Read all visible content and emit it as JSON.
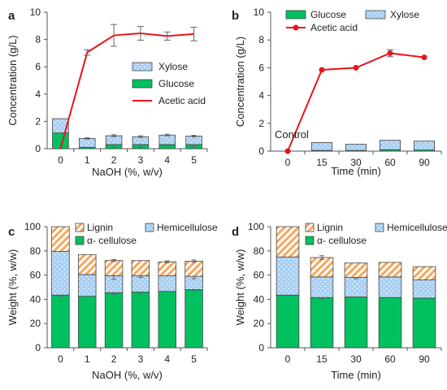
{
  "colors": {
    "glucose": "#00c060",
    "xylose": "#a9cff2",
    "acetic": "#e8141c",
    "lignin": "#f6a65c",
    "hemicellulose": "#a9cff2",
    "cellulose": "#00c060",
    "error_bar": "#666666"
  },
  "chart_data": [
    {
      "panel": "a",
      "type": "bar+line",
      "xlabel": "NaOH (%, w/v)",
      "ylabel": "Concentration (g/L)",
      "categories": [
        "0",
        "1",
        "2",
        "3",
        "4",
        "5"
      ],
      "ylim": [
        0,
        10
      ],
      "yticks": [
        0,
        2,
        4,
        6,
        8,
        10
      ],
      "series": [
        {
          "name": "Glucose",
          "kind": "stacked-bar",
          "values": [
            1.15,
            0.1,
            0.3,
            0.3,
            0.3,
            0.3
          ],
          "err": [
            0,
            0,
            0.2,
            0.2,
            0.1,
            0.15
          ]
        },
        {
          "name": "Xylose",
          "kind": "stacked-bar",
          "values": [
            1.05,
            0.65,
            0.65,
            0.58,
            0.7,
            0.62
          ],
          "err": [
            0,
            0.05,
            0.07,
            0.06,
            0.06,
            0.06
          ]
        },
        {
          "name": "Acetic acid",
          "kind": "line",
          "values": [
            0,
            7.05,
            8.3,
            8.45,
            8.25,
            8.4
          ],
          "err": [
            0,
            0.2,
            0.8,
            0.5,
            0.3,
            0.5
          ]
        }
      ],
      "legend": [
        "Xylose",
        "Glucose",
        "Acetic acid"
      ]
    },
    {
      "panel": "b",
      "type": "bar+line",
      "xlabel": "Time (min)",
      "ylabel": "Concentration (g/L)",
      "categories": [
        "0",
        "15",
        "30",
        "60",
        "90"
      ],
      "ylim": [
        0,
        10
      ],
      "yticks": [
        0,
        2,
        4,
        6,
        8,
        10
      ],
      "annotation": "Control",
      "series": [
        {
          "name": "Glucose",
          "kind": "stacked-bar",
          "values": [
            0,
            0.05,
            0.05,
            0.1,
            0.08
          ],
          "err": [
            0,
            0,
            0,
            0,
            0
          ]
        },
        {
          "name": "Xylose",
          "kind": "stacked-bar",
          "values": [
            0,
            0.57,
            0.45,
            0.68,
            0.64
          ],
          "err": [
            0,
            0,
            0,
            0,
            0
          ]
        },
        {
          "name": "Acetic acid",
          "kind": "line",
          "values": [
            0,
            5.85,
            6.0,
            7.05,
            6.75
          ],
          "err": [
            0,
            0,
            0,
            0.25,
            0
          ]
        }
      ],
      "legend": [
        "Glucose",
        "Xylose",
        "Acetic acid"
      ]
    },
    {
      "panel": "c",
      "type": "stacked-bar",
      "xlabel": "NaOH (%, w/v)",
      "ylabel": "Weight (%, w/w)",
      "categories": [
        "0",
        "1",
        "2",
        "3",
        "4",
        "5"
      ],
      "ylim": [
        0,
        100
      ],
      "yticks": [
        0,
        20,
        40,
        60,
        80,
        100
      ],
      "series": [
        {
          "name": "α- cellulose",
          "values": [
            43.5,
            42.5,
            45.5,
            46.0,
            46.5,
            48.0
          ],
          "err": [
            1.2,
            0,
            1.5,
            1.2,
            0,
            1.0
          ]
        },
        {
          "name": "Hemicellulose",
          "values": [
            36.0,
            18.0,
            14.0,
            13.5,
            13.0,
            11.0
          ],
          "err": [
            0,
            0,
            3.0,
            1.5,
            0,
            2.0
          ]
        },
        {
          "name": "Lignin",
          "values": [
            20.5,
            16.5,
            12.5,
            12.5,
            11.5,
            12.5
          ],
          "err": [
            0,
            0,
            0.8,
            0,
            0.8,
            1.0
          ]
        }
      ],
      "legend": [
        "Lignin",
        "Hemicellulose",
        "α- cellulose"
      ]
    },
    {
      "panel": "d",
      "type": "stacked-bar",
      "xlabel": "Time (min)",
      "ylabel": "Weight (%, w/w)",
      "categories": [
        "0",
        "15",
        "30",
        "60",
        "90"
      ],
      "ylim": [
        0,
        100
      ],
      "yticks": [
        0,
        20,
        40,
        60,
        80,
        100
      ],
      "series": [
        {
          "name": "α- cellulose",
          "values": [
            43.5,
            41.5,
            42.0,
            41.5,
            41.0
          ],
          "err": [
            0,
            1.0,
            0,
            0,
            0
          ]
        },
        {
          "name": "Hemicellulose",
          "values": [
            31.5,
            17.0,
            16.0,
            17.0,
            15.0
          ],
          "err": [
            0,
            0,
            1.0,
            0,
            0
          ]
        },
        {
          "name": "Lignin",
          "values": [
            25.0,
            16.0,
            12.0,
            12.0,
            11.0
          ],
          "err": [
            0,
            1.5,
            0,
            0,
            0
          ]
        }
      ],
      "legend": [
        "Lignin",
        "Hemicellulose",
        "α- cellulose"
      ]
    }
  ]
}
